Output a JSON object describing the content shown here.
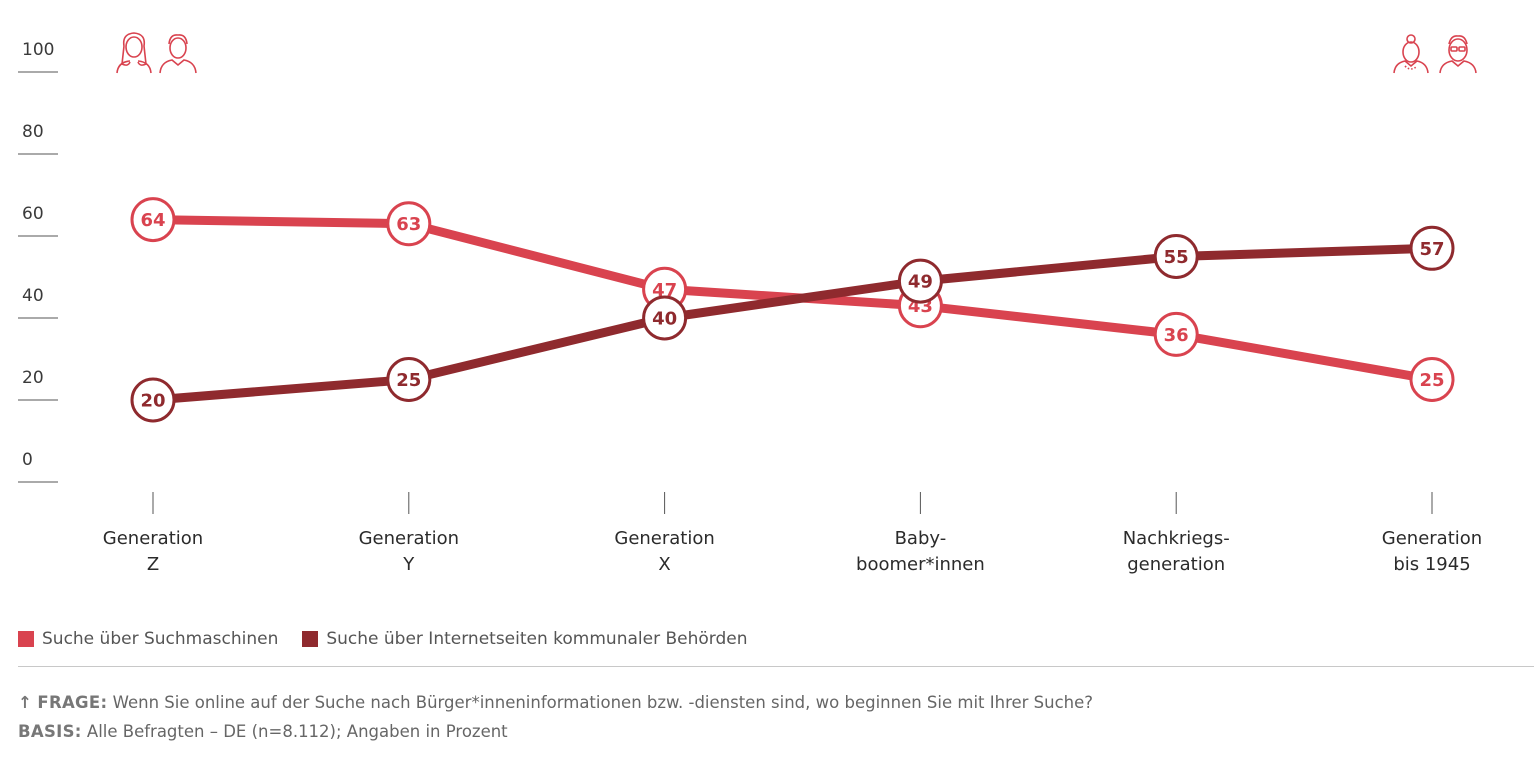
{
  "chart_data": {
    "type": "line",
    "categories": [
      [
        "Generation",
        "Z"
      ],
      [
        "Generation",
        "Y"
      ],
      [
        "Generation",
        "X"
      ],
      [
        "Baby-",
        "boomer*innen"
      ],
      [
        "Nachkriegs-",
        "generation"
      ],
      [
        "Generation",
        "bis 1945"
      ]
    ],
    "y_ticks": [
      "100",
      "80",
      "60",
      "40",
      "20",
      "0"
    ],
    "ylim": [
      0,
      100
    ],
    "grid": false,
    "series": [
      {
        "name": "Suche über Suchmaschinen",
        "color": "#d9434f",
        "values": [
          64,
          63,
          47,
          43,
          36,
          25
        ]
      },
      {
        "name": "Suche über Internetseiten kommunaler Behörden",
        "color": "#8f2a2e",
        "values": [
          20,
          25,
          40,
          49,
          55,
          57
        ]
      }
    ],
    "legend_position": "bottom-left",
    "icons": [
      "young-woman-icon",
      "young-man-icon",
      "old-woman-icon",
      "old-man-icon"
    ]
  },
  "footnote": {
    "frage_arrow": "↑",
    "frage_label": "FRAGE:",
    "frage_text": "Wenn Sie online auf der Suche nach Bürger*inneninformationen bzw. -diensten sind, wo beginnen Sie mit Ihrer Suche?",
    "basis_label": "BASIS:",
    "basis_text": "Alle Befragten – DE (n=8.112); Angaben in Prozent"
  }
}
